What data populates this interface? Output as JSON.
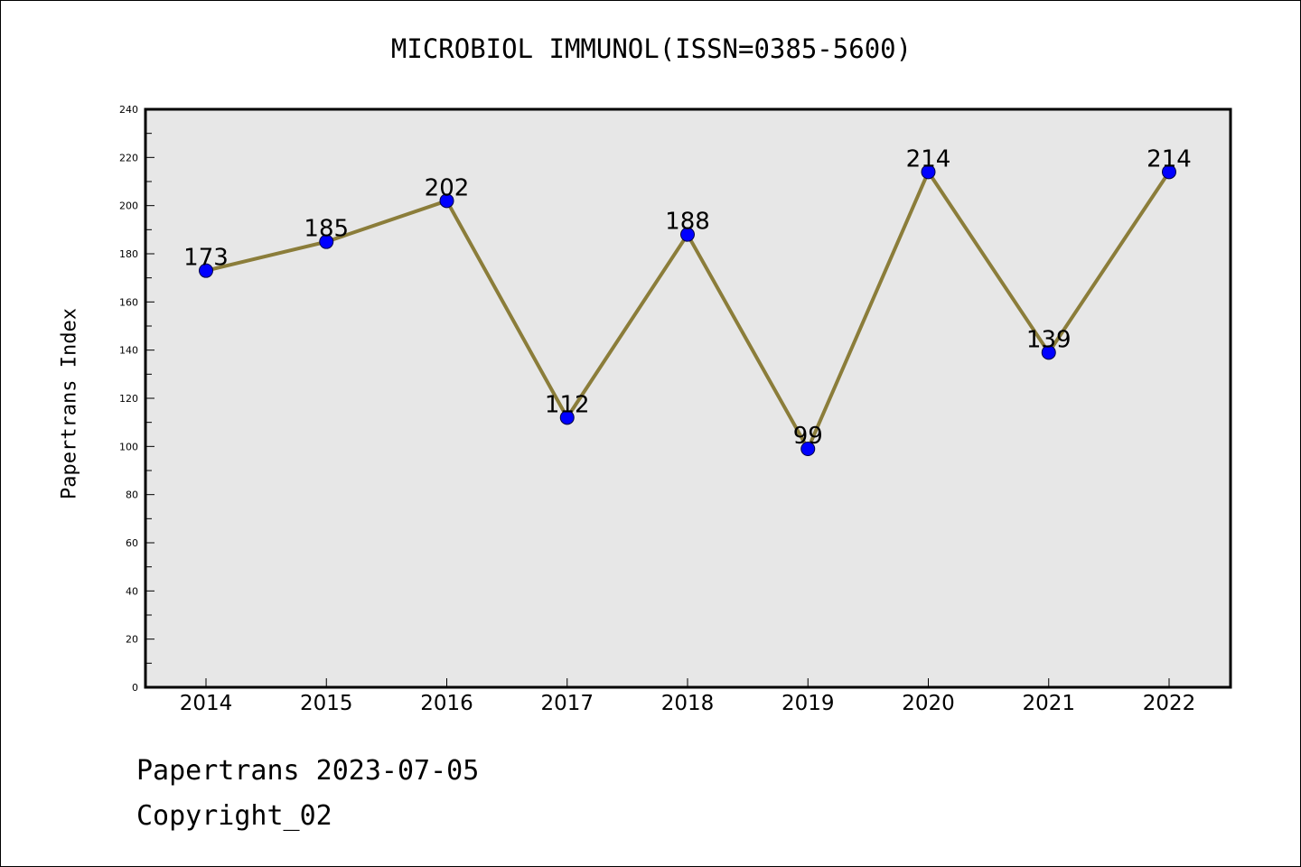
{
  "chart_data": {
    "type": "line",
    "title": "MICROBIOL IMMUNOL(ISSN=0385-5600)",
    "xlabel": "",
    "ylabel": "Papertrans Index",
    "categories": [
      "2014",
      "2015",
      "2016",
      "2017",
      "2018",
      "2019",
      "2020",
      "2021",
      "2022"
    ],
    "series": [
      {
        "values": [
          173,
          185,
          202,
          112,
          188,
          99,
          214,
          139,
          214
        ],
        "line_color": "#8b7d3a",
        "marker_color": "#0000ff"
      }
    ],
    "data_labels": [
      "173",
      "185",
      "202",
      "112",
      "188",
      "99",
      "214",
      "139",
      "214"
    ],
    "ylim": [
      0,
      240
    ],
    "yticks": [
      "0",
      "20",
      "40",
      "60",
      "80",
      "100",
      "120",
      "140",
      "160",
      "180",
      "200",
      "220",
      "240"
    ],
    "plot_background": "#e7e7e7",
    "grid": false,
    "legend": "none"
  },
  "footer": {
    "line1": "Papertrans 2023-07-05",
    "line2": "Copyright_02"
  }
}
